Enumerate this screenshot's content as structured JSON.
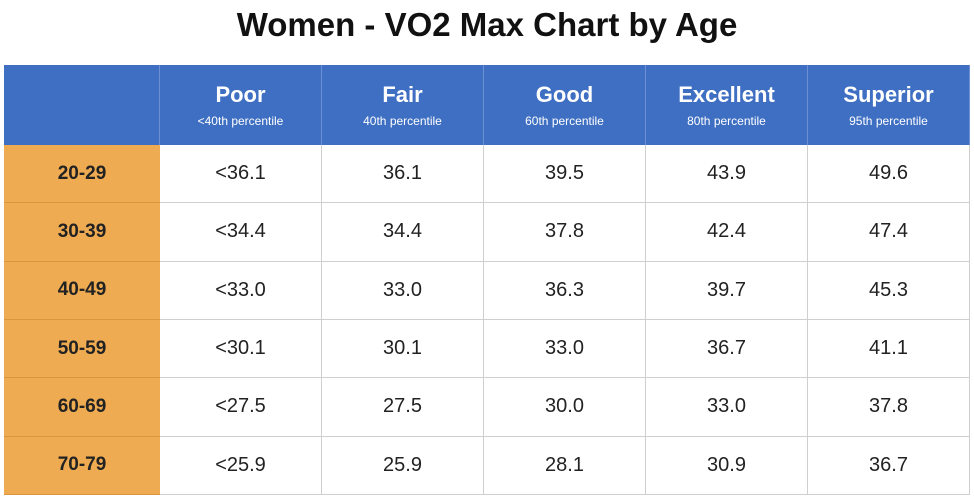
{
  "title": "Women - VO2 Max Chart by Age",
  "table": {
    "columns": [
      {
        "label": "Poor",
        "sub": "<40th percentile"
      },
      {
        "label": "Fair",
        "sub": "40th percentile"
      },
      {
        "label": "Good",
        "sub": "60th percentile"
      },
      {
        "label": "Excellent",
        "sub": "80th percentile"
      },
      {
        "label": "Superior",
        "sub": "95th percentile"
      }
    ],
    "rows": [
      {
        "age": "20-29",
        "cells": [
          "<36.1",
          "36.1",
          "39.5",
          "43.9",
          "49.6"
        ]
      },
      {
        "age": "30-39",
        "cells": [
          "<34.4",
          "34.4",
          "37.8",
          "42.4",
          "47.4"
        ]
      },
      {
        "age": "40-49",
        "cells": [
          "<33.0",
          "33.0",
          "36.3",
          "39.7",
          "45.3"
        ]
      },
      {
        "age": "50-59",
        "cells": [
          "<30.1",
          "30.1",
          "33.0",
          "36.7",
          "41.1"
        ]
      },
      {
        "age": "60-69",
        "cells": [
          "<27.5",
          "27.5",
          "30.0",
          "33.0",
          "37.8"
        ]
      },
      {
        "age": "70-79",
        "cells": [
          "<25.9",
          "25.9",
          "28.1",
          "30.9",
          "36.7"
        ]
      }
    ]
  }
}
